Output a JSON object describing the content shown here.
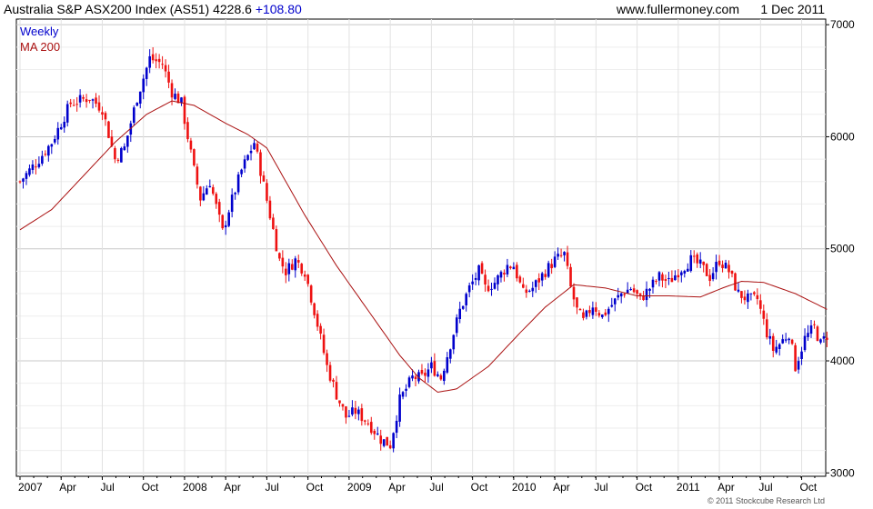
{
  "header": {
    "title": "Australia S&P ASX200 Index (AS51) 4228.6",
    "change": "+108.80",
    "website": "www.fullermoney.com",
    "date": "1 Dec 2011"
  },
  "legend": {
    "weekly": "Weekly",
    "ma": "MA 200"
  },
  "copyright": "© 2011 Stockcube Research Ltd",
  "colors": {
    "up": "#0000cc",
    "down": "#ee1111",
    "ma": "#aa1111",
    "grid": "#d8d8d8",
    "change": "#0000cc"
  },
  "chart_data": {
    "type": "candlestick",
    "title": "Australia S&P ASX200 Index (AS51) 4228.6 +108.80",
    "xlabel": "",
    "ylabel": "",
    "ylim": [
      2970,
      7050
    ],
    "yticks": [
      7000,
      6000,
      5000,
      4000,
      3000
    ],
    "ytick_labels": [
      "7000",
      "6000",
      "5000",
      "4000",
      "3000"
    ],
    "grid": true,
    "legend_position": "top-left",
    "x_ticks": [
      {
        "label": "2007",
        "week": 0
      },
      {
        "label": "Apr",
        "week": 13
      },
      {
        "label": "Jul",
        "week": 26
      },
      {
        "label": "Oct",
        "week": 39
      },
      {
        "label": "2008",
        "week": 52
      },
      {
        "label": "Apr",
        "week": 65
      },
      {
        "label": "Jul",
        "week": 78
      },
      {
        "label": "Oct",
        "week": 91
      },
      {
        "label": "2009",
        "week": 104
      },
      {
        "label": "Apr",
        "week": 117
      },
      {
        "label": "Jul",
        "week": 130
      },
      {
        "label": "Oct",
        "week": 143
      },
      {
        "label": "2010",
        "week": 156
      },
      {
        "label": "Apr",
        "week": 169
      },
      {
        "label": "Jul",
        "week": 182
      },
      {
        "label": "Oct",
        "week": 195
      },
      {
        "label": "2011",
        "week": 208
      },
      {
        "label": "Apr",
        "week": 221
      },
      {
        "label": "Jul",
        "week": 234
      },
      {
        "label": "Oct",
        "week": 247
      }
    ],
    "week_count": 256,
    "close_anchors": [
      [
        0,
        5600
      ],
      [
        6,
        5800
      ],
      [
        10,
        5950
      ],
      [
        16,
        6300
      ],
      [
        22,
        6350
      ],
      [
        26,
        6250
      ],
      [
        30,
        5800
      ],
      [
        33,
        5900
      ],
      [
        37,
        6350
      ],
      [
        41,
        6700
      ],
      [
        45,
        6650
      ],
      [
        48,
        6400
      ],
      [
        51,
        6300
      ],
      [
        55,
        5700
      ],
      [
        57,
        5450
      ],
      [
        60,
        5600
      ],
      [
        64,
        5150
      ],
      [
        66,
        5350
      ],
      [
        70,
        5700
      ],
      [
        74,
        5950
      ],
      [
        76,
        5700
      ],
      [
        79,
        5300
      ],
      [
        82,
        4900
      ],
      [
        84,
        4800
      ],
      [
        87,
        4900
      ],
      [
        90,
        4800
      ],
      [
        93,
        4450
      ],
      [
        97,
        3950
      ],
      [
        100,
        3700
      ],
      [
        103,
        3500
      ],
      [
        106,
        3550
      ],
      [
        110,
        3450
      ],
      [
        114,
        3300
      ],
      [
        117,
        3250
      ],
      [
        120,
        3650
      ],
      [
        124,
        3850
      ],
      [
        127,
        3850
      ],
      [
        130,
        3950
      ],
      [
        133,
        3850
      ],
      [
        136,
        4150
      ],
      [
        139,
        4450
      ],
      [
        142,
        4650
      ],
      [
        145,
        4800
      ],
      [
        147,
        4650
      ],
      [
        150,
        4700
      ],
      [
        154,
        4850
      ],
      [
        156,
        4850
      ],
      [
        159,
        4600
      ],
      [
        162,
        4650
      ],
      [
        166,
        4800
      ],
      [
        169,
        4900
      ],
      [
        172,
        4950
      ],
      [
        174,
        4650
      ],
      [
        176,
        4450
      ],
      [
        178,
        4350
      ],
      [
        181,
        4500
      ],
      [
        184,
        4400
      ],
      [
        187,
        4500
      ],
      [
        190,
        4600
      ],
      [
        193,
        4650
      ],
      [
        196,
        4550
      ],
      [
        199,
        4650
      ],
      [
        202,
        4750
      ],
      [
        205,
        4700
      ],
      [
        208,
        4800
      ],
      [
        212,
        4900
      ],
      [
        215,
        4850
      ],
      [
        218,
        4750
      ],
      [
        221,
        4900
      ],
      [
        224,
        4800
      ],
      [
        227,
        4600
      ],
      [
        230,
        4550
      ],
      [
        233,
        4550
      ],
      [
        236,
        4250
      ],
      [
        238,
        4100
      ],
      [
        240,
        4150
      ],
      [
        243,
        4250
      ],
      [
        245,
        3950
      ],
      [
        248,
        4200
      ],
      [
        251,
        4300
      ],
      [
        253,
        4150
      ],
      [
        255,
        4228
      ]
    ],
    "ma_anchors": [
      [
        0,
        5170
      ],
      [
        10,
        5350
      ],
      [
        20,
        5650
      ],
      [
        30,
        5950
      ],
      [
        40,
        6200
      ],
      [
        48,
        6320
      ],
      [
        55,
        6280
      ],
      [
        65,
        6120
      ],
      [
        72,
        6020
      ],
      [
        78,
        5900
      ],
      [
        84,
        5600
      ],
      [
        90,
        5300
      ],
      [
        100,
        4850
      ],
      [
        110,
        4450
      ],
      [
        120,
        4050
      ],
      [
        126,
        3850
      ],
      [
        132,
        3720
      ],
      [
        138,
        3750
      ],
      [
        148,
        3950
      ],
      [
        158,
        4250
      ],
      [
        166,
        4480
      ],
      [
        175,
        4680
      ],
      [
        185,
        4650
      ],
      [
        195,
        4580
      ],
      [
        205,
        4580
      ],
      [
        215,
        4570
      ],
      [
        222,
        4650
      ],
      [
        228,
        4710
      ],
      [
        235,
        4700
      ],
      [
        245,
        4600
      ],
      [
        255,
        4460
      ]
    ]
  }
}
